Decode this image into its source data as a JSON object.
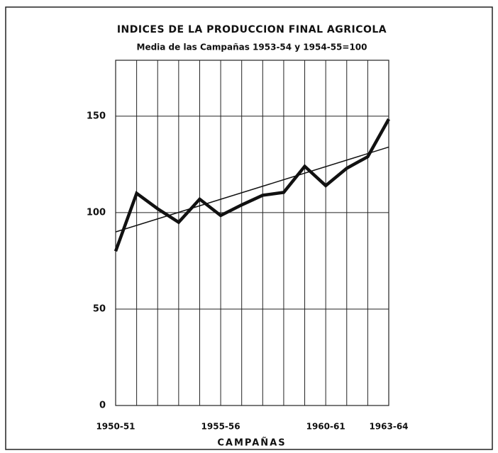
{
  "chart_data": {
    "type": "line",
    "title": "INDICES DE LA PRODUCCION FINAL AGRICOLA",
    "subtitle": "Media de las Campañas 1953-54 y 1954-55=100",
    "x_label": "CAMPAÑAS",
    "categories": [
      "1950-51",
      null,
      null,
      null,
      null,
      "1955-56",
      null,
      null,
      null,
      null,
      "1960-61",
      null,
      null,
      "1963-64"
    ],
    "series": [
      {
        "color": "#111111",
        "values": [
          80,
          110,
          102,
          95,
          107,
          98.5,
          104,
          109,
          110.5,
          124,
          114,
          123,
          129,
          148.5
        ]
      }
    ],
    "trend_line": {
      "start": 90,
      "end": 134
    },
    "ylim": [
      0,
      179
    ],
    "yticks": [
      0,
      50,
      100,
      150
    ],
    "grid": true
  }
}
